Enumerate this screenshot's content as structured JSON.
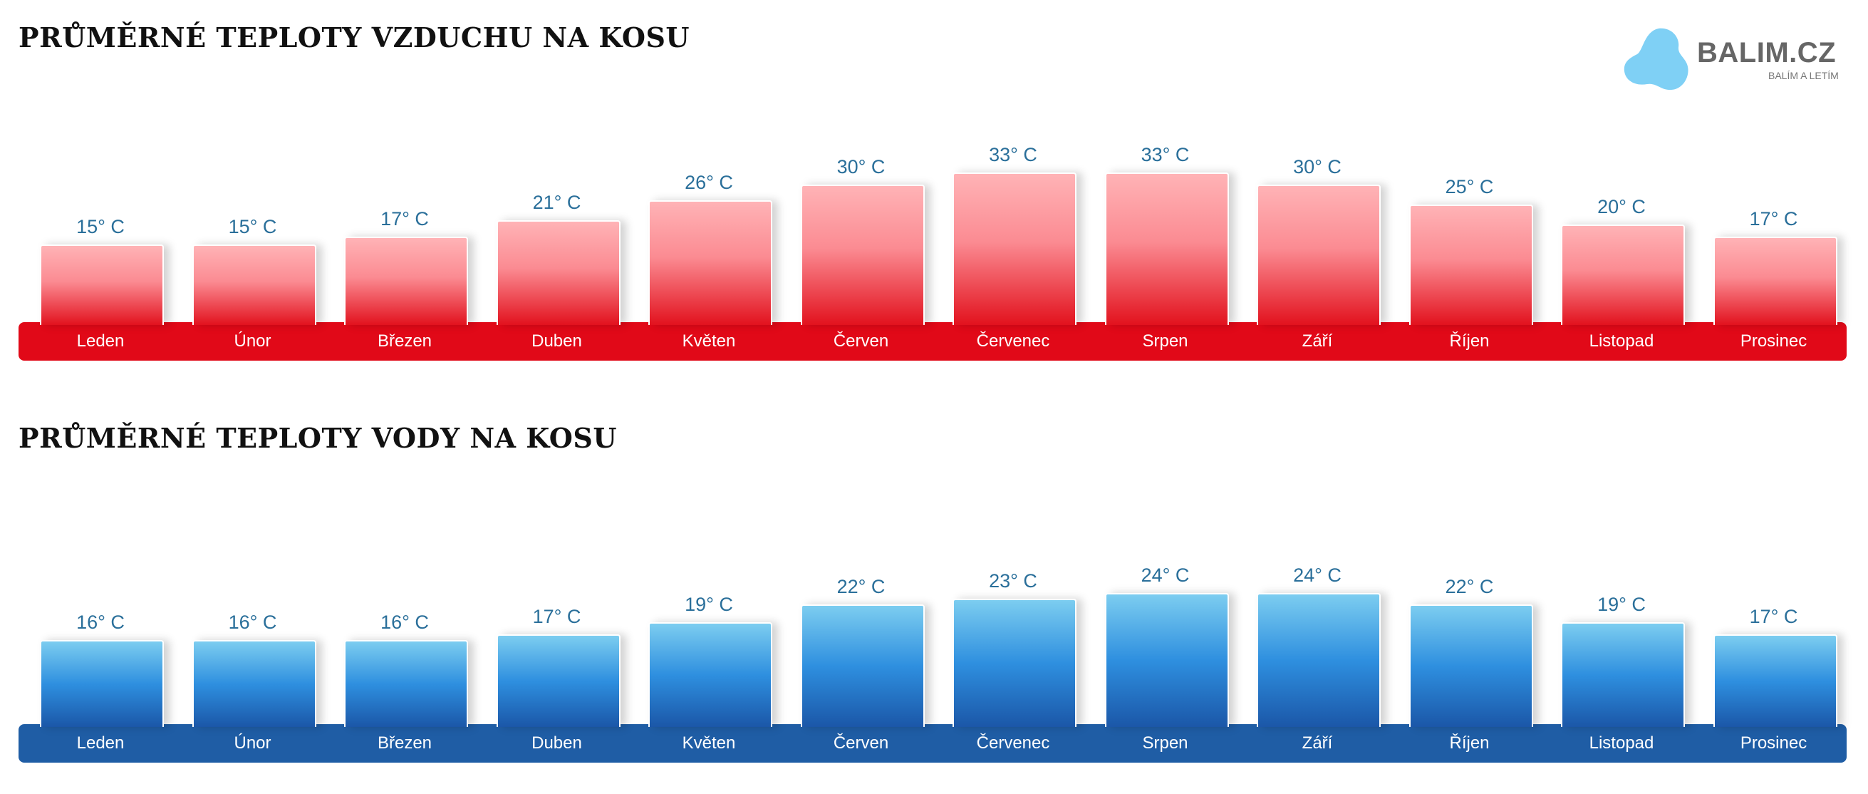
{
  "titles": {
    "air": "PRŮMĚRNÉ TEPLOTY VZDUCHU NA KOSU",
    "water": "PRŮMĚRNÉ TEPLOTY VODY NA KOSU"
  },
  "logo": {
    "name": "BALIM.CZ",
    "tagline": "BALÍM A LETÍM",
    "icon": "blob-icon",
    "color": "#7fd0f5"
  },
  "colors": {
    "air_band": "#e10918",
    "water_band": "#1f5da5",
    "value_text": "#2a6f9a"
  },
  "chart_data": [
    {
      "type": "bar",
      "title": "PRŮMĚRNÉ TEPLOTY VZDUCHU NA KOSU",
      "categories": [
        "Leden",
        "Únor",
        "Březen",
        "Duben",
        "Květen",
        "Červen",
        "Červenec",
        "Srpen",
        "Září",
        "Říjen",
        "Listopad",
        "Prosinec"
      ],
      "values": [
        15,
        15,
        17,
        21,
        26,
        30,
        33,
        33,
        30,
        25,
        20,
        17
      ],
      "labels": [
        "15° C",
        "15° C",
        "17° C",
        "21° C",
        "26° C",
        "30° C",
        "33° C",
        "33° C",
        "30° C",
        "25° C",
        "20° C",
        "17° C"
      ],
      "unit": "° C"
    },
    {
      "type": "bar",
      "title": "PRŮMĚRNÉ TEPLOTY VODY NA KOSU",
      "categories": [
        "Leden",
        "Únor",
        "Březen",
        "Duben",
        "Květen",
        "Červen",
        "Červenec",
        "Srpen",
        "Září",
        "Říjen",
        "Listopad",
        "Prosinec"
      ],
      "values": [
        16,
        16,
        16,
        17,
        19,
        22,
        23,
        24,
        24,
        22,
        19,
        17
      ],
      "labels": [
        "16° C",
        "16° C",
        "16° C",
        "17° C",
        "19° C",
        "22° C",
        "23° C",
        "24° C",
        "24° C",
        "22° C",
        "19° C",
        "17° C"
      ],
      "unit": "° C"
    }
  ]
}
